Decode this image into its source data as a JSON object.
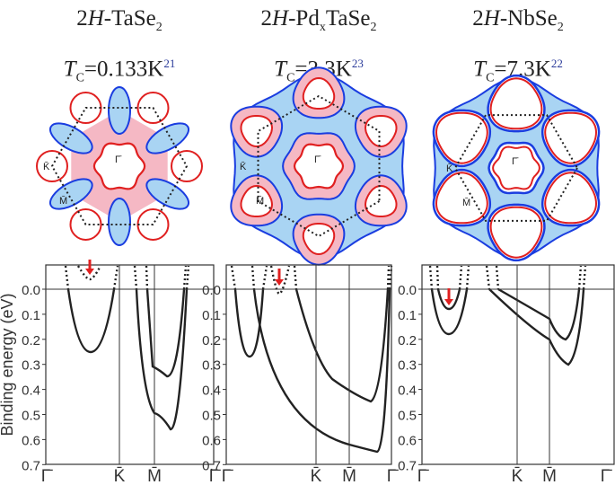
{
  "panels": [
    {
      "pre": "2",
      "italic": "H",
      "name": "-TaSe",
      "sub": "2",
      "name2": "",
      "sub2": "",
      "tc_label": "T",
      "tc_sub": "C",
      "tc_value": "=0.133K",
      "ref": "21"
    },
    {
      "pre": "2",
      "italic": "H",
      "name": "-Pd",
      "sub": "x",
      "name2": "TaSe",
      "sub2": "2",
      "tc_label": "T",
      "tc_sub": "C",
      "tc_value": "=3.3K",
      "ref": "23"
    },
    {
      "pre": "2",
      "italic": "H",
      "name": "-NbSe",
      "sub": "2",
      "name2": "",
      "sub2": "",
      "tc_label": "T",
      "tc_sub": "C",
      "tc_value": "=7.3K",
      "ref": "22"
    }
  ],
  "fs_labels": {
    "gamma": "Γ̄",
    "K": "K̄",
    "M": "M̄"
  },
  "axis": {
    "ylabel": "Binding energy (eV)",
    "yticks": [
      "0.0",
      "0.1",
      "0.2",
      "0.3",
      "0.4",
      "0.5",
      "0.6",
      "0.7"
    ],
    "xticks": [
      "Γ̄",
      "K̄",
      "M̄",
      "Γ̄"
    ]
  },
  "colors": {
    "pink": "#f5b8c4",
    "blue": "#a9d4f3",
    "red": "#e02020",
    "darkblue": "#1a3de0",
    "arrow": "#e02020"
  }
}
